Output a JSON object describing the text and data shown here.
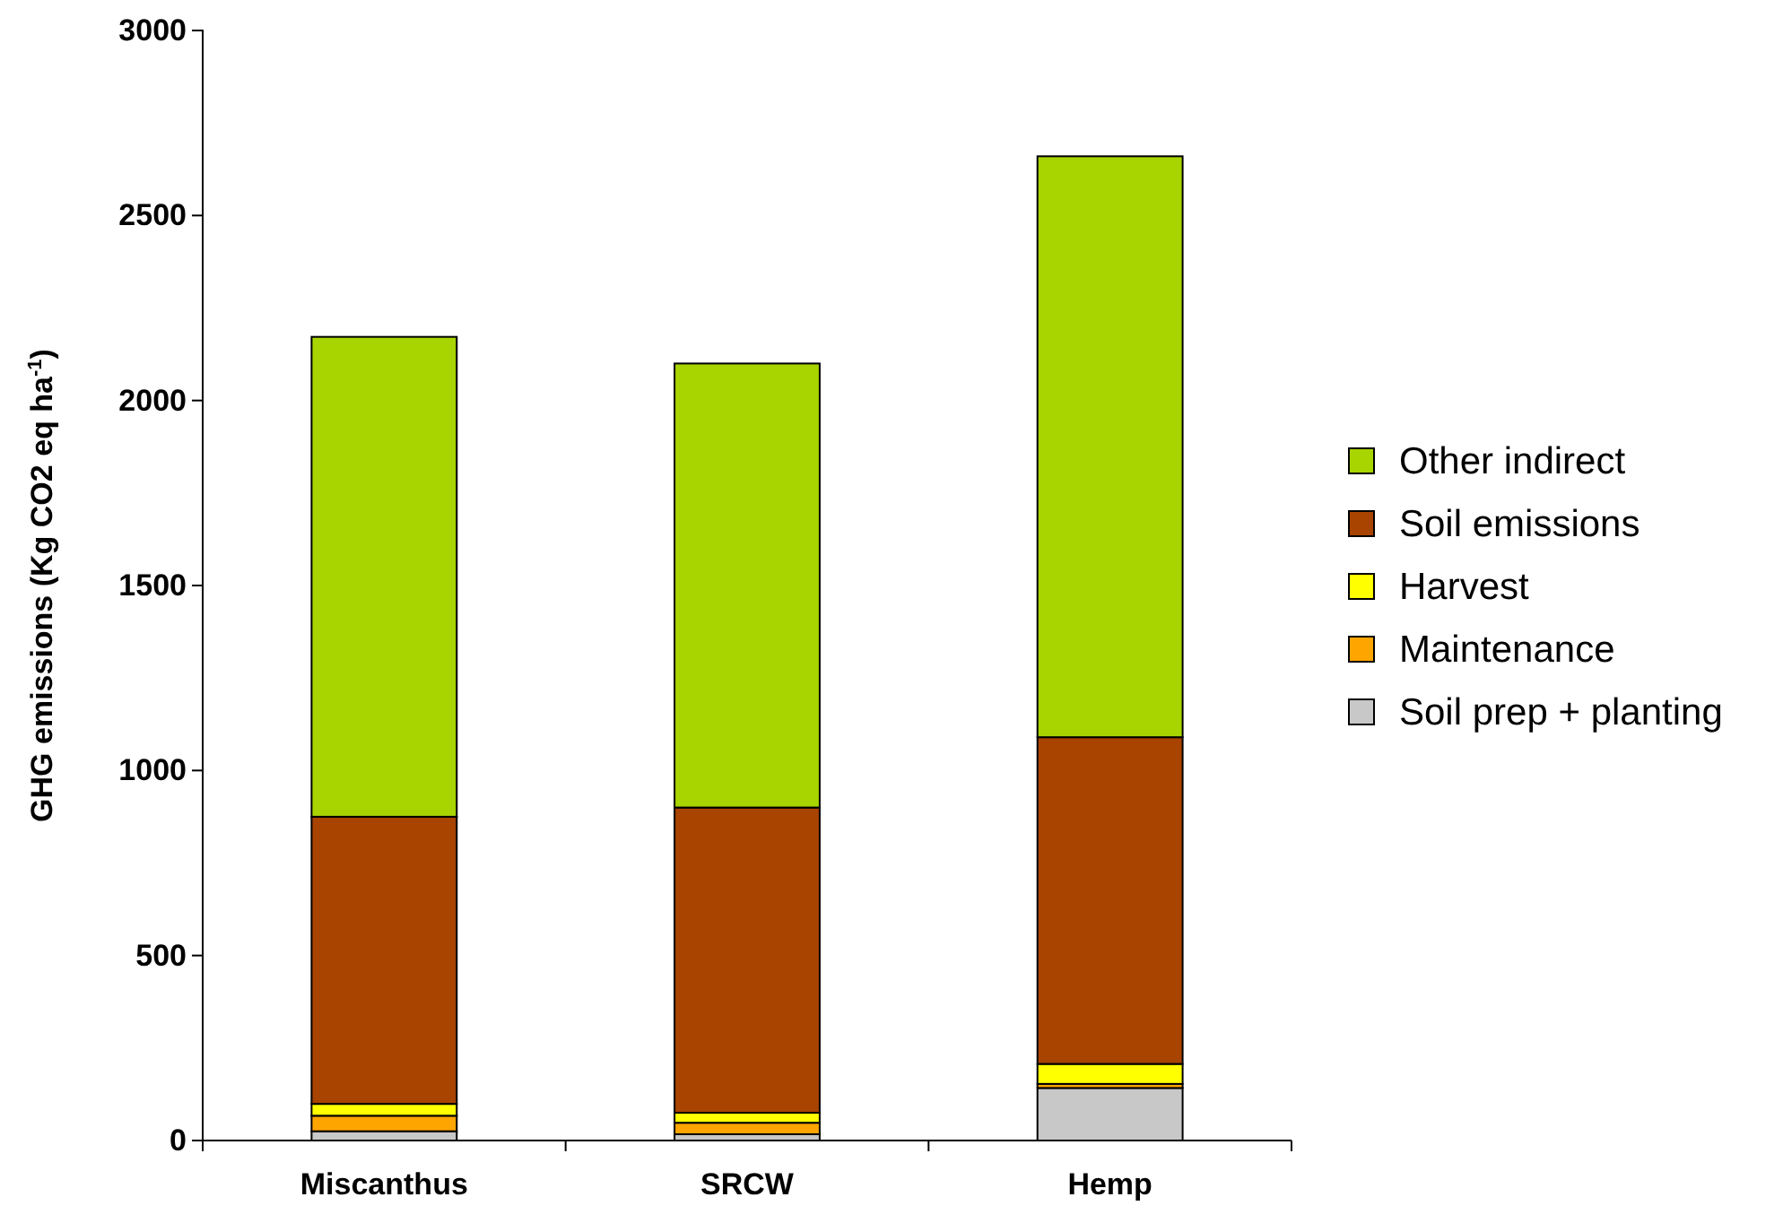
{
  "chart_data": {
    "type": "bar",
    "stacked": true,
    "ylabel": "GHG emissions (Kg CO2 eq ha$^{-1}$)",
    "categories": [
      "Miscanthus",
      "SRCW",
      "Hemp"
    ],
    "series": [
      {
        "name": "Soil prep + planting",
        "color": "#c8c8c8",
        "values": [
          25,
          17,
          142
        ]
      },
      {
        "name": "Maintenance",
        "color": "#ffa500",
        "values": [
          42,
          31,
          11
        ]
      },
      {
        "name": "Harvest",
        "color": "#ffff00",
        "values": [
          32,
          27,
          54
        ]
      },
      {
        "name": "Soil emissions",
        "color": "#a84300",
        "values": [
          776,
          825,
          883
        ]
      },
      {
        "name": "Other indirect",
        "color": "#a8d400",
        "values": [
          1297,
          1200,
          1570
        ]
      }
    ],
    "ylim": [
      0,
      3000
    ],
    "yticks": [
      0,
      500,
      1000,
      1500,
      2000,
      2500,
      3000
    ],
    "grid": false,
    "legend": "right"
  }
}
